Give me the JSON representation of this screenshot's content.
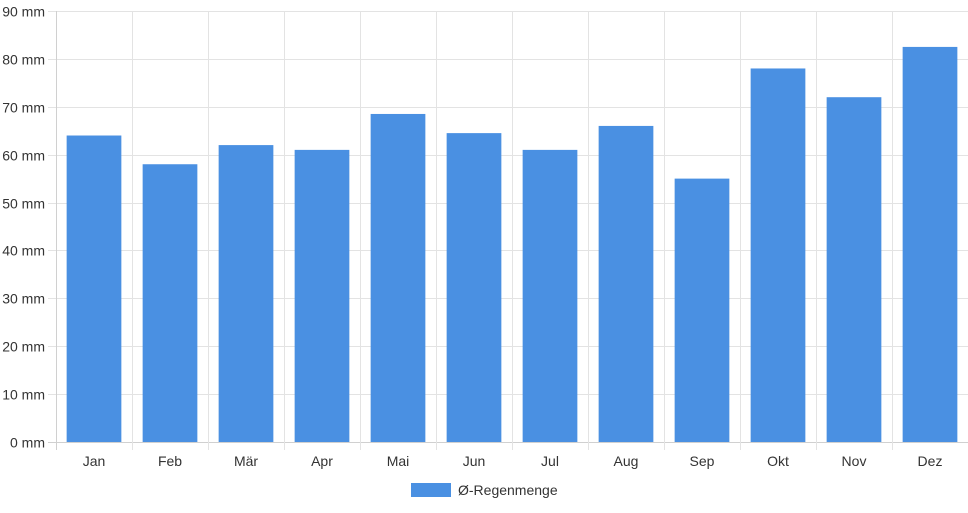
{
  "chart_data": {
    "type": "bar",
    "categories": [
      "Jan",
      "Feb",
      "Mär",
      "Apr",
      "Mai",
      "Jun",
      "Jul",
      "Aug",
      "Sep",
      "Okt",
      "Nov",
      "Dez"
    ],
    "series": [
      {
        "name": "Ø-Regenmenge",
        "color": "#4a90e2",
        "values": [
          64,
          58,
          62,
          61,
          68.5,
          64.5,
          61,
          66,
          55,
          78,
          72,
          82.5
        ]
      }
    ],
    "ylim": [
      0,
      90
    ],
    "yticks": [
      0,
      10,
      20,
      30,
      40,
      50,
      60,
      70,
      80,
      90
    ],
    "y_unit": "mm",
    "grid": true,
    "legend_position": "bottom-center"
  }
}
